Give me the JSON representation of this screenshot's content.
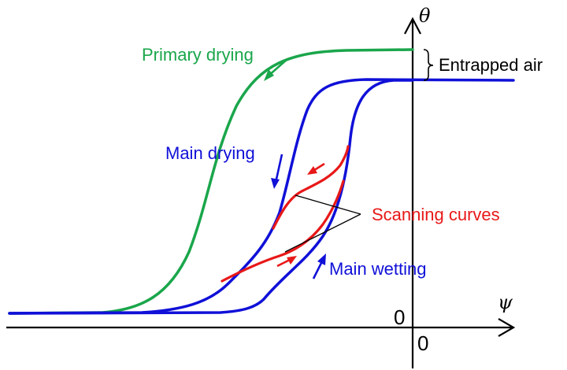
{
  "axes": {
    "y_symbol": "θ",
    "x_symbol": "ψ",
    "origin_label_y": "0",
    "origin_label_x": "0"
  },
  "labels": {
    "primary_drying": "Primary drying",
    "entrapped_air": "Entrapped air",
    "main_drying": "Main drying",
    "scanning_curves": "Scanning curves",
    "main_wetting": "Main wetting"
  },
  "colors": {
    "primary": "#1aa64b",
    "main": "#1010d8",
    "scanning": "#e81818",
    "axis": "#000000"
  }
}
